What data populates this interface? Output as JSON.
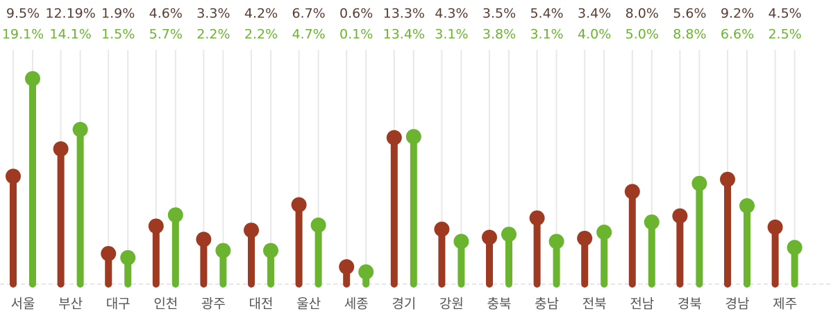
{
  "chart_data": {
    "type": "lollipop",
    "categories": [
      "서울",
      "부산",
      "대구",
      "인천",
      "광주",
      "대전",
      "울산",
      "세종",
      "경기",
      "강원",
      "충북",
      "충남",
      "전북",
      "전남",
      "경북",
      "경남",
      "제주"
    ],
    "series": [
      {
        "color": "#9e3a22",
        "values": [
          9.5,
          12.19,
          1.9,
          4.6,
          3.3,
          4.2,
          6.7,
          0.6,
          13.3,
          4.3,
          3.5,
          5.4,
          3.4,
          8.0,
          5.6,
          9.2,
          4.5
        ],
        "value_labels": [
          "9.5%",
          "12.19%",
          "1.9%",
          "4.6%",
          "3.3%",
          "4.2%",
          "6.7%",
          "0.6%",
          "13.3%",
          "4.3%",
          "3.5%",
          "5.4%",
          "3.4%",
          "8.0%",
          "5.6%",
          "9.2%",
          "4.5%"
        ]
      },
      {
        "color": "#6ab42f",
        "values": [
          19.1,
          14.1,
          1.5,
          5.7,
          2.2,
          2.2,
          4.7,
          0.1,
          13.4,
          3.1,
          3.8,
          3.1,
          4.0,
          5.0,
          8.8,
          6.6,
          2.5
        ],
        "value_labels": [
          "19.1%",
          "14.1%",
          "1.5%",
          "5.7%",
          "2.2%",
          "2.2%",
          "4.7%",
          "0.1%",
          "13.4%",
          "3.1%",
          "3.8%",
          "3.1%",
          "4.0%",
          "5.0%",
          "8.8%",
          "6.6%",
          "2.5%"
        ]
      }
    ],
    "ylim": [
      -1.1,
      20
    ]
  }
}
